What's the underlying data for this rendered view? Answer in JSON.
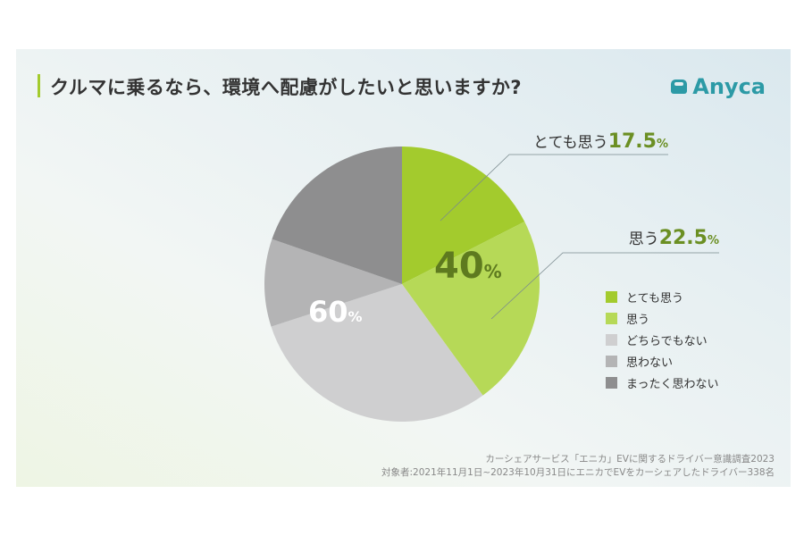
{
  "title": "クルマに乗るなら、環境へ配慮がしたいと思いますか?",
  "logo": {
    "text": "Anyca",
    "color": "#2c9aa6"
  },
  "chart_data": {
    "type": "pie",
    "title": "クルマに乗るなら、環境へ配慮がしたいと思いますか?",
    "start": "top, clockwise",
    "slices": [
      {
        "label": "とても思う",
        "value": 17.5,
        "color": "#a3cb2d"
      },
      {
        "label": "思う",
        "value": 22.5,
        "color": "#b6d957"
      },
      {
        "label": "どちらでもない",
        "value": 30.0,
        "color": "#cfcfd0"
      },
      {
        "label": "思わない",
        "value": 10.3,
        "color": "#b4b4b5"
      },
      {
        "label": "まったく思わない",
        "value": 19.7,
        "color": "#8e8e8f"
      }
    ],
    "callouts": [
      {
        "label": "とても思う",
        "value": "17.5",
        "unit": "%"
      },
      {
        "label": "思う",
        "value": "22.5",
        "unit": "%"
      }
    ],
    "group_labels": [
      {
        "value": "40",
        "unit": "%",
        "color": "#5e7a1f"
      },
      {
        "value": "60",
        "unit": "%",
        "color": "#ffffff"
      }
    ],
    "legend": {
      "position": "right",
      "items": [
        "とても思う",
        "思う",
        "どちらでもない",
        "思わない",
        "まったく思わない"
      ]
    }
  },
  "source": {
    "line1": "カーシェアサービス「エニカ」EVに関するドライバー意識調査2023",
    "line2": "対象者:2021年11月1日~2023年10月31日にエニカでEVをカーシェアしたドライバー338名"
  }
}
